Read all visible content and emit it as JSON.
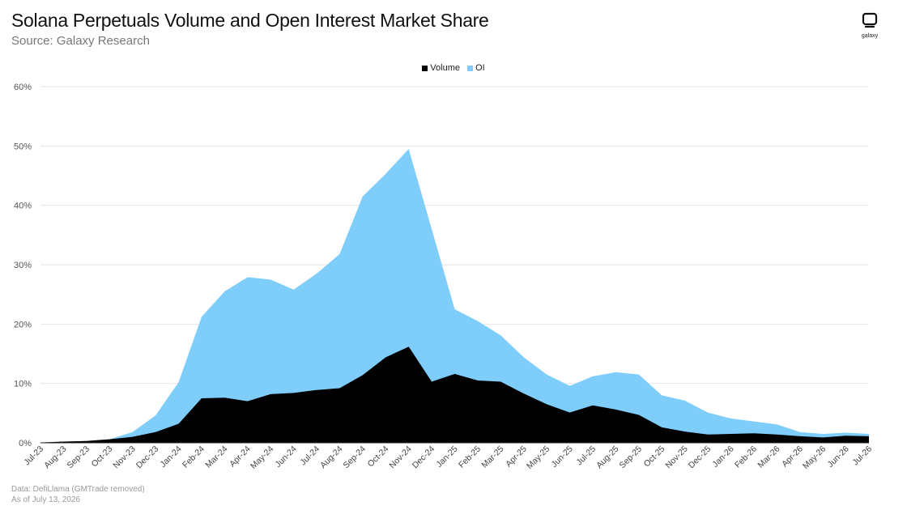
{
  "header": {
    "title": "Solana Perpetuals Volume and Open Interest Market Share",
    "subtitle": "Source: Galaxy Research",
    "logo_text": "galaxy"
  },
  "footer": {
    "data_note": "Data: DefiLlama (GMTrade removed)",
    "date_note": "As of July 13, 2026"
  },
  "colors": {
    "volume": "#000000",
    "oi": "#7fcdfb",
    "grid": "#e6e6e6"
  },
  "chart_data": {
    "type": "area",
    "title": "Solana Perpetuals Volume and Open Interest Market Share",
    "subtitle": "Source: Galaxy Research",
    "xlabel": "",
    "ylabel": "",
    "ylim": [
      0,
      60
    ],
    "yticks": [
      "0%",
      "10%",
      "20%",
      "30%",
      "40%",
      "50%",
      "60%"
    ],
    "grid": true,
    "legend": "top-center",
    "categories": [
      "Jul-23",
      "Aug-23",
      "Sep-23",
      "Oct-23",
      "Nov-23",
      "Dec-23",
      "Jan-24",
      "Feb-24",
      "Mar-24",
      "Apr-24",
      "May-24",
      "Jun-24",
      "Jul-24",
      "Aug-24",
      "Sep-24",
      "Oct-24",
      "Nov-24",
      "Dec-24",
      "Jan-25",
      "Feb-25",
      "Mar-25",
      "Apr-25",
      "May-25",
      "Jun-25",
      "Jul-25",
      "Aug-25",
      "Sep-25",
      "Oct-25",
      "Nov-25",
      "Dec-25",
      "Jan-26",
      "Feb-26",
      "Mar-26",
      "Apr-26",
      "May-26",
      "Jun-26",
      "Jul-26"
    ],
    "series": [
      {
        "name": "Volume",
        "values": [
          0.05,
          0.2,
          0.3,
          0.6,
          1.0,
          1.8,
          3.2,
          7.5,
          7.6,
          7.0,
          8.2,
          8.4,
          8.9,
          9.2,
          11.4,
          14.4,
          16.2,
          10.3,
          11.6,
          10.5,
          10.3,
          8.3,
          6.5,
          5.1,
          6.3,
          5.6,
          4.7,
          2.6,
          1.9,
          1.4,
          1.5,
          1.6,
          1.4,
          1.1,
          0.9,
          1.2,
          1.1
        ]
      },
      {
        "name": "OI",
        "values": [
          0.05,
          0.2,
          0.3,
          0.6,
          1.8,
          4.6,
          10.2,
          21.2,
          25.5,
          27.9,
          27.5,
          25.8,
          28.5,
          31.8,
          41.5,
          45.3,
          49.5,
          36.0,
          22.5,
          20.5,
          18.1,
          14.4,
          11.5,
          9.6,
          11.2,
          11.9,
          11.5,
          8.0,
          7.1,
          5.1,
          4.1,
          3.6,
          3.1,
          1.8,
          1.5,
          1.7,
          1.5
        ]
      }
    ]
  }
}
